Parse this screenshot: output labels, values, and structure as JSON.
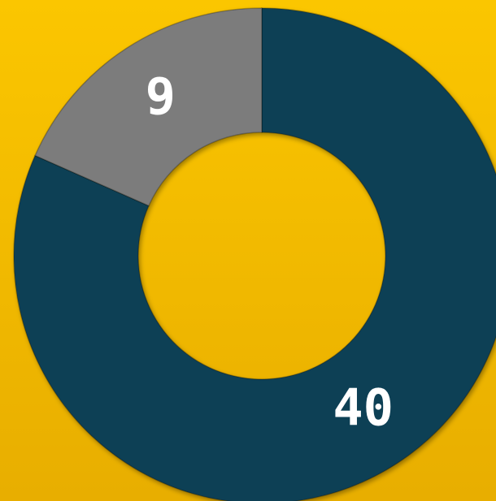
{
  "chart_data": {
    "type": "donut",
    "values": [
      40,
      9
    ],
    "colors": [
      "#0b3f54",
      "#7b7b7b"
    ],
    "start_angle": 0,
    "direction": "clockwise"
  }
}
